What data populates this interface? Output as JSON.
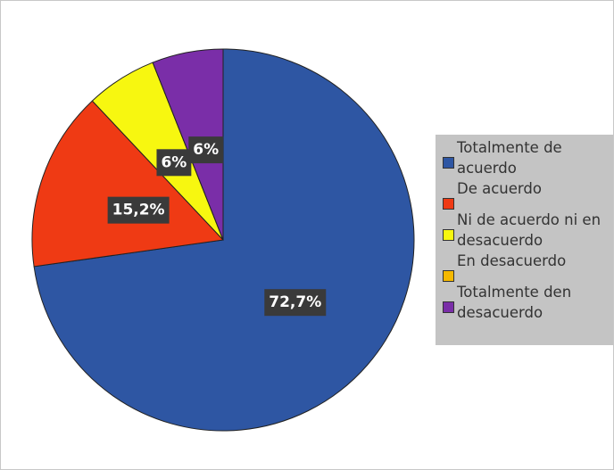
{
  "chart_data": {
    "type": "pie",
    "categories": [
      "Totalmente de acuerdo",
      "De acuerdo",
      "Ni de acuerdo ni en desacuerdo",
      "En desacuerdo",
      "Totalmente den desacuerdo"
    ],
    "values": [
      72.7,
      15.2,
      6,
      0,
      6
    ],
    "value_labels": [
      "72,7%",
      "15,2%",
      "6%",
      null,
      "6%"
    ],
    "colors": [
      "#2e56a3",
      "#ef3a14",
      "#f7f710",
      "#f5b800",
      "#7a2ea8"
    ],
    "legend": "right"
  }
}
